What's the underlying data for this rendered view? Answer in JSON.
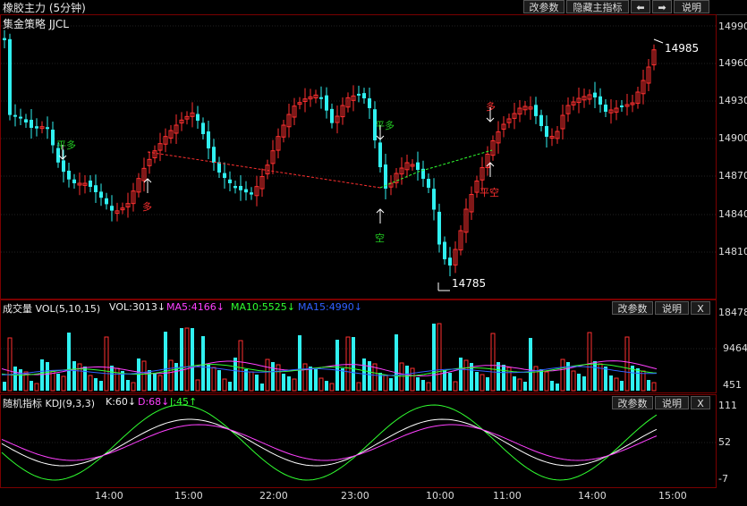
{
  "header": {
    "title": "橡胶主力 (5分钟)",
    "strategy": "集金策略 JJCL",
    "buttons": [
      "改参数",
      "隐藏主指标",
      "⬅",
      "➡",
      "说明"
    ]
  },
  "price": {
    "ticks": [
      "14990",
      "14960",
      "14930",
      "14900",
      "14870",
      "14840",
      "14810"
    ],
    "high_label": "14985",
    "low_label": "14785",
    "signals": [
      {
        "text": "平多",
        "color": "#22cc22",
        "arrow": "down"
      },
      {
        "text": "多",
        "color": "#ff3030",
        "arrow": "up"
      },
      {
        "text": "平多",
        "color": "#22cc22",
        "arrow": "down"
      },
      {
        "text": "空",
        "color": "#22cc22",
        "arrow": "up"
      },
      {
        "text": "多",
        "color": "#ff3030",
        "arrow": "down"
      },
      {
        "text": "平空",
        "color": "#ff3030",
        "arrow": "up"
      }
    ]
  },
  "volume": {
    "title": "成交量 VOL(5,10,15)",
    "vol": "VOL:3013↓",
    "ma5": "MA5:4166↓",
    "ma10": "MA10:5525↓",
    "ma15": "MA15:4990↓",
    "ticks": [
      "18478",
      "9464",
      "451"
    ],
    "buttons": [
      "改参数",
      "说明",
      "X"
    ]
  },
  "kdj": {
    "title": "随机指标 KDJ(9,3,3)",
    "k": "K:60↓",
    "d": "D:68↓",
    "j": "J:45↑",
    "ticks": [
      "111",
      "52",
      "-7"
    ],
    "buttons": [
      "改参数",
      "说明",
      "X"
    ]
  },
  "time_axis": [
    "14:00",
    "15:00",
    "22:00",
    "23:00",
    "10:00",
    "11:00",
    "14:00",
    "15:00"
  ],
  "colors": {
    "up": "#ff3030",
    "down": "#30f0f0",
    "ma5": "#ff40ff",
    "ma10": "#30ff30",
    "ma15": "#3060ff",
    "k": "#ffffff",
    "d": "#ff40ff",
    "j": "#30ff30"
  }
}
